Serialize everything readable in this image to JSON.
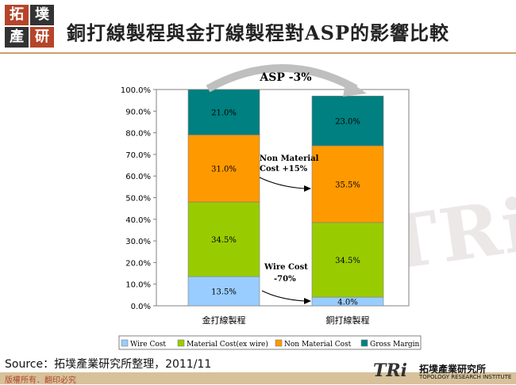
{
  "logo": {
    "chars": [
      "拓",
      "墣",
      "產",
      "研"
    ]
  },
  "title": "銅打線製程與金打線製程對ASP的影響比較",
  "watermark": "RiTRi",
  "chart_data": {
    "type": "bar",
    "stacked": true,
    "categories": [
      "金打線製程",
      "銅打線製程"
    ],
    "ylim": [
      0,
      100
    ],
    "yticks": [
      "0.0%",
      "10.0%",
      "20.0%",
      "30.0%",
      "40.0%",
      "50.0%",
      "60.0%",
      "70.0%",
      "80.0%",
      "90.0%",
      "100.0%"
    ],
    "series": [
      {
        "name": "Wire Cost",
        "color": "#99ccff",
        "values": [
          13.5,
          4.0
        ],
        "labels": [
          "13.5%",
          "4.0%"
        ]
      },
      {
        "name": "Material Cost(ex wire)",
        "color": "#99cc00",
        "values": [
          34.5,
          34.5
        ],
        "labels": [
          "34.5%",
          "34.5%"
        ]
      },
      {
        "name": "Non Material Cost",
        "color": "#ff9900",
        "values": [
          31.0,
          35.5
        ],
        "labels": [
          "31.0%",
          "35.5%"
        ]
      },
      {
        "name": "Gross Margin",
        "color": "#008080",
        "values": [
          21.0,
          23.0
        ],
        "labels": [
          "21.0%",
          "23.0%"
        ]
      }
    ],
    "annotations": {
      "asp": "ASP -3%",
      "non_material": [
        "Non Material",
        "Cost +15%"
      ],
      "wire": [
        "Wire Cost",
        "-70%"
      ]
    }
  },
  "source": "Source：拓墣產業研究所整理，2011/11",
  "copyright": "版權所有．翻印必究",
  "brand": {
    "mark": "TRi",
    "name": "拓墣產業研究所",
    "sub": "TOPOLOGY RESEARCH INSTITUTE"
  }
}
